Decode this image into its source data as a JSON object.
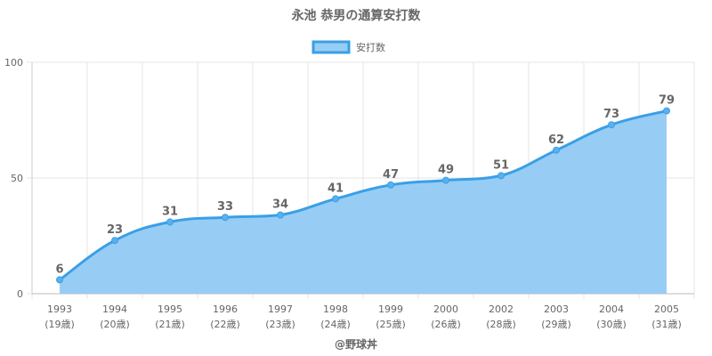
{
  "chart_data": {
    "type": "area",
    "title": "永池 恭男の通算安打数",
    "legend": {
      "position": "top",
      "color": "#3a9fe6",
      "fill": "#97cdf5"
    },
    "series": [
      {
        "name": "安打数",
        "values": [
          6,
          23,
          31,
          33,
          34,
          41,
          47,
          49,
          51,
          62,
          73,
          79
        ]
      }
    ],
    "categories": [
      "1993",
      "1994",
      "1995",
      "1996",
      "1997",
      "1998",
      "1999",
      "2000",
      "2002",
      "2003",
      "2004",
      "2005"
    ],
    "ages": [
      "(19歳)",
      "(20歳)",
      "(21歳)",
      "(22歳)",
      "(23歳)",
      "(24歳)",
      "(25歳)",
      "(26歳)",
      "(28歳)",
      "(29歳)",
      "(30歳)",
      "(31歳)"
    ],
    "ylim": [
      0,
      100
    ],
    "yticks": [
      0,
      50,
      100
    ],
    "grid": true,
    "xlabel": "@野球丼",
    "ylabel": ""
  }
}
